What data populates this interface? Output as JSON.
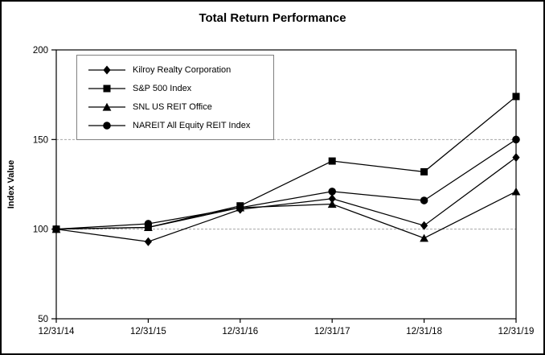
{
  "title": "Total Return Performance",
  "chart_data": {
    "type": "line",
    "title": "Total Return Performance",
    "xlabel": "",
    "ylabel": "Index Value",
    "ylim": [
      50,
      200
    ],
    "yticks": [
      50,
      100,
      150,
      200
    ],
    "grid": "horizontal dashed gridlines at 100 and 150",
    "legend_position": "top-left inside plot area",
    "line_color": "#000000",
    "background_color": "#ffffff",
    "categories": [
      "12/31/14",
      "12/31/15",
      "12/31/16",
      "12/31/17",
      "12/31/18",
      "12/31/19"
    ],
    "series": [
      {
        "name": "Kilroy Realty Corporation",
        "marker": "diamond",
        "values": [
          100,
          93,
          111,
          117,
          102,
          140
        ]
      },
      {
        "name": "S&P 500 Index",
        "marker": "square",
        "values": [
          100,
          101,
          113,
          138,
          132,
          174
        ]
      },
      {
        "name": "SNL US REIT Office",
        "marker": "triangle",
        "values": [
          100,
          101,
          112,
          114,
          95,
          121
        ]
      },
      {
        "name": "NAREIT All Equity REIT Index",
        "marker": "circle",
        "values": [
          100,
          103,
          112,
          121,
          116,
          150
        ]
      }
    ]
  }
}
